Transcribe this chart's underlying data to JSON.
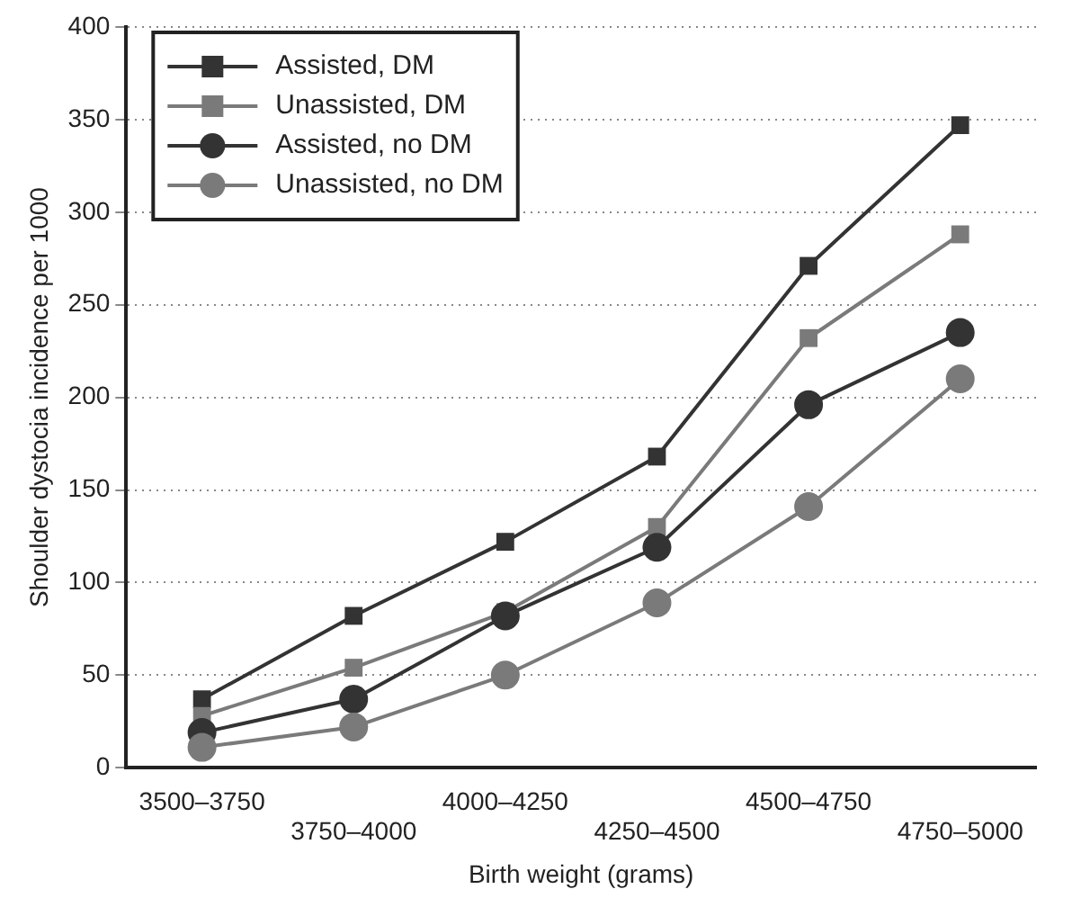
{
  "chart_data": {
    "type": "line",
    "xlabel": "Birth weight (grams)",
    "ylabel": "Shoulder dystocia incidence per 1000",
    "categories": [
      "3500–3750",
      "3750–4000",
      "4000–4250",
      "4250–4500",
      "4500–4750",
      "4750–5000"
    ],
    "series": [
      {
        "name": "Assisted, DM",
        "color": "#333333",
        "marker": "square",
        "values": [
          37,
          82,
          122,
          168,
          271,
          347
        ]
      },
      {
        "name": "Unassisted, DM",
        "color": "#7a7a7a",
        "marker": "square",
        "values": [
          28,
          54,
          84,
          130,
          232,
          288
        ]
      },
      {
        "name": "Assisted, no DM",
        "color": "#333333",
        "marker": "circle",
        "values": [
          19,
          37,
          82,
          119,
          196,
          235
        ]
      },
      {
        "name": "Unassisted, no DM",
        "color": "#7a7a7a",
        "marker": "circle",
        "values": [
          11,
          22,
          50,
          89,
          141,
          210
        ]
      }
    ],
    "ylim": [
      0,
      400
    ],
    "yticks": [
      0,
      50,
      100,
      150,
      200,
      250,
      300,
      350,
      400
    ],
    "grid": "y",
    "legend": "top left",
    "line_style": "solid"
  }
}
